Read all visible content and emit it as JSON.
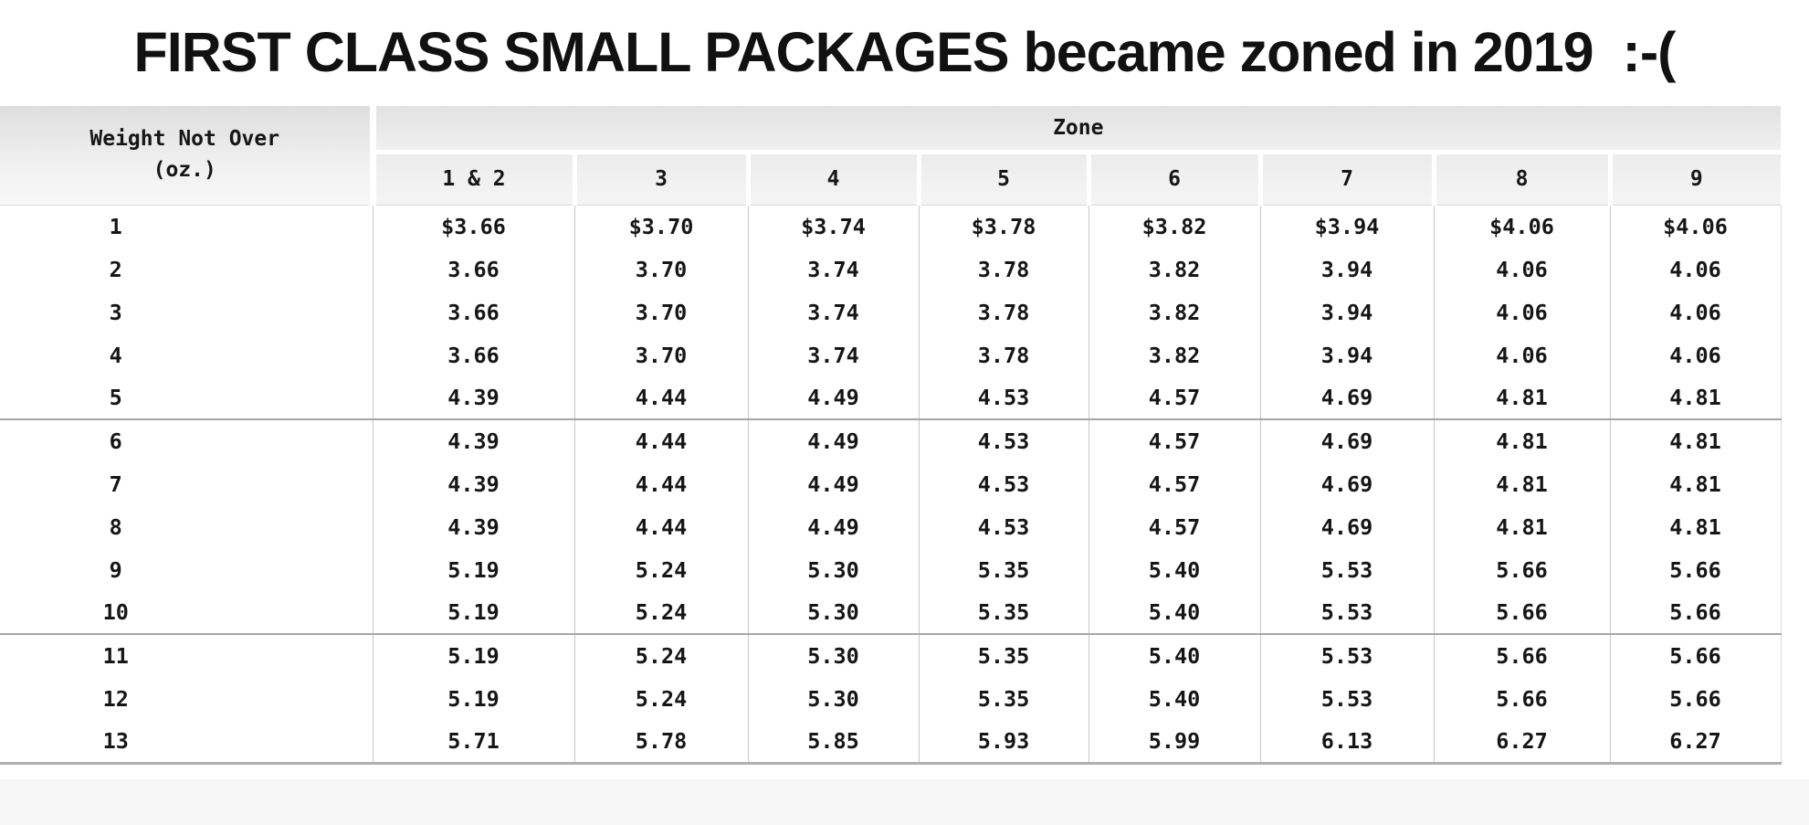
{
  "title": "FIRST CLASS SMALL PACKAGES became zoned in 2019  :-(",
  "table": {
    "weight_header_line1": "Weight Not Over",
    "weight_header_line2": "(oz.)",
    "zone_label": "Zone",
    "zone_columns": [
      "1 & 2",
      "3",
      "4",
      "5",
      "6",
      "7",
      "8",
      "9"
    ],
    "group_breaks_after": [
      "5",
      "10"
    ]
  },
  "chart_data": {
    "type": "table",
    "title": "FIRST CLASS SMALL PACKAGES became zoned in 2019  :-(",
    "columns": [
      "Weight Not Over (oz.)",
      "Zone 1 & 2",
      "Zone 3",
      "Zone 4",
      "Zone 5",
      "Zone 6",
      "Zone 7",
      "Zone 8",
      "Zone 9"
    ],
    "rows": [
      {
        "weight": "1",
        "prices": [
          "$3.66",
          "$3.70",
          "$3.74",
          "$3.78",
          "$3.82",
          "$3.94",
          "$4.06",
          "$4.06"
        ]
      },
      {
        "weight": "2",
        "prices": [
          "3.66",
          "3.70",
          "3.74",
          "3.78",
          "3.82",
          "3.94",
          "4.06",
          "4.06"
        ]
      },
      {
        "weight": "3",
        "prices": [
          "3.66",
          "3.70",
          "3.74",
          "3.78",
          "3.82",
          "3.94",
          "4.06",
          "4.06"
        ]
      },
      {
        "weight": "4",
        "prices": [
          "3.66",
          "3.70",
          "3.74",
          "3.78",
          "3.82",
          "3.94",
          "4.06",
          "4.06"
        ]
      },
      {
        "weight": "5",
        "prices": [
          "4.39",
          "4.44",
          "4.49",
          "4.53",
          "4.57",
          "4.69",
          "4.81",
          "4.81"
        ]
      },
      {
        "weight": "6",
        "prices": [
          "4.39",
          "4.44",
          "4.49",
          "4.53",
          "4.57",
          "4.69",
          "4.81",
          "4.81"
        ]
      },
      {
        "weight": "7",
        "prices": [
          "4.39",
          "4.44",
          "4.49",
          "4.53",
          "4.57",
          "4.69",
          "4.81",
          "4.81"
        ]
      },
      {
        "weight": "8",
        "prices": [
          "4.39",
          "4.44",
          "4.49",
          "4.53",
          "4.57",
          "4.69",
          "4.81",
          "4.81"
        ]
      },
      {
        "weight": "9",
        "prices": [
          "5.19",
          "5.24",
          "5.30",
          "5.35",
          "5.40",
          "5.53",
          "5.66",
          "5.66"
        ]
      },
      {
        "weight": "10",
        "prices": [
          "5.19",
          "5.24",
          "5.30",
          "5.35",
          "5.40",
          "5.53",
          "5.66",
          "5.66"
        ]
      },
      {
        "weight": "11",
        "prices": [
          "5.19",
          "5.24",
          "5.30",
          "5.35",
          "5.40",
          "5.53",
          "5.66",
          "5.66"
        ]
      },
      {
        "weight": "12",
        "prices": [
          "5.19",
          "5.24",
          "5.30",
          "5.35",
          "5.40",
          "5.53",
          "5.66",
          "5.66"
        ]
      },
      {
        "weight": "13",
        "prices": [
          "5.71",
          "5.78",
          "5.85",
          "5.93",
          "5.99",
          "6.13",
          "6.27",
          "6.27"
        ]
      }
    ]
  }
}
